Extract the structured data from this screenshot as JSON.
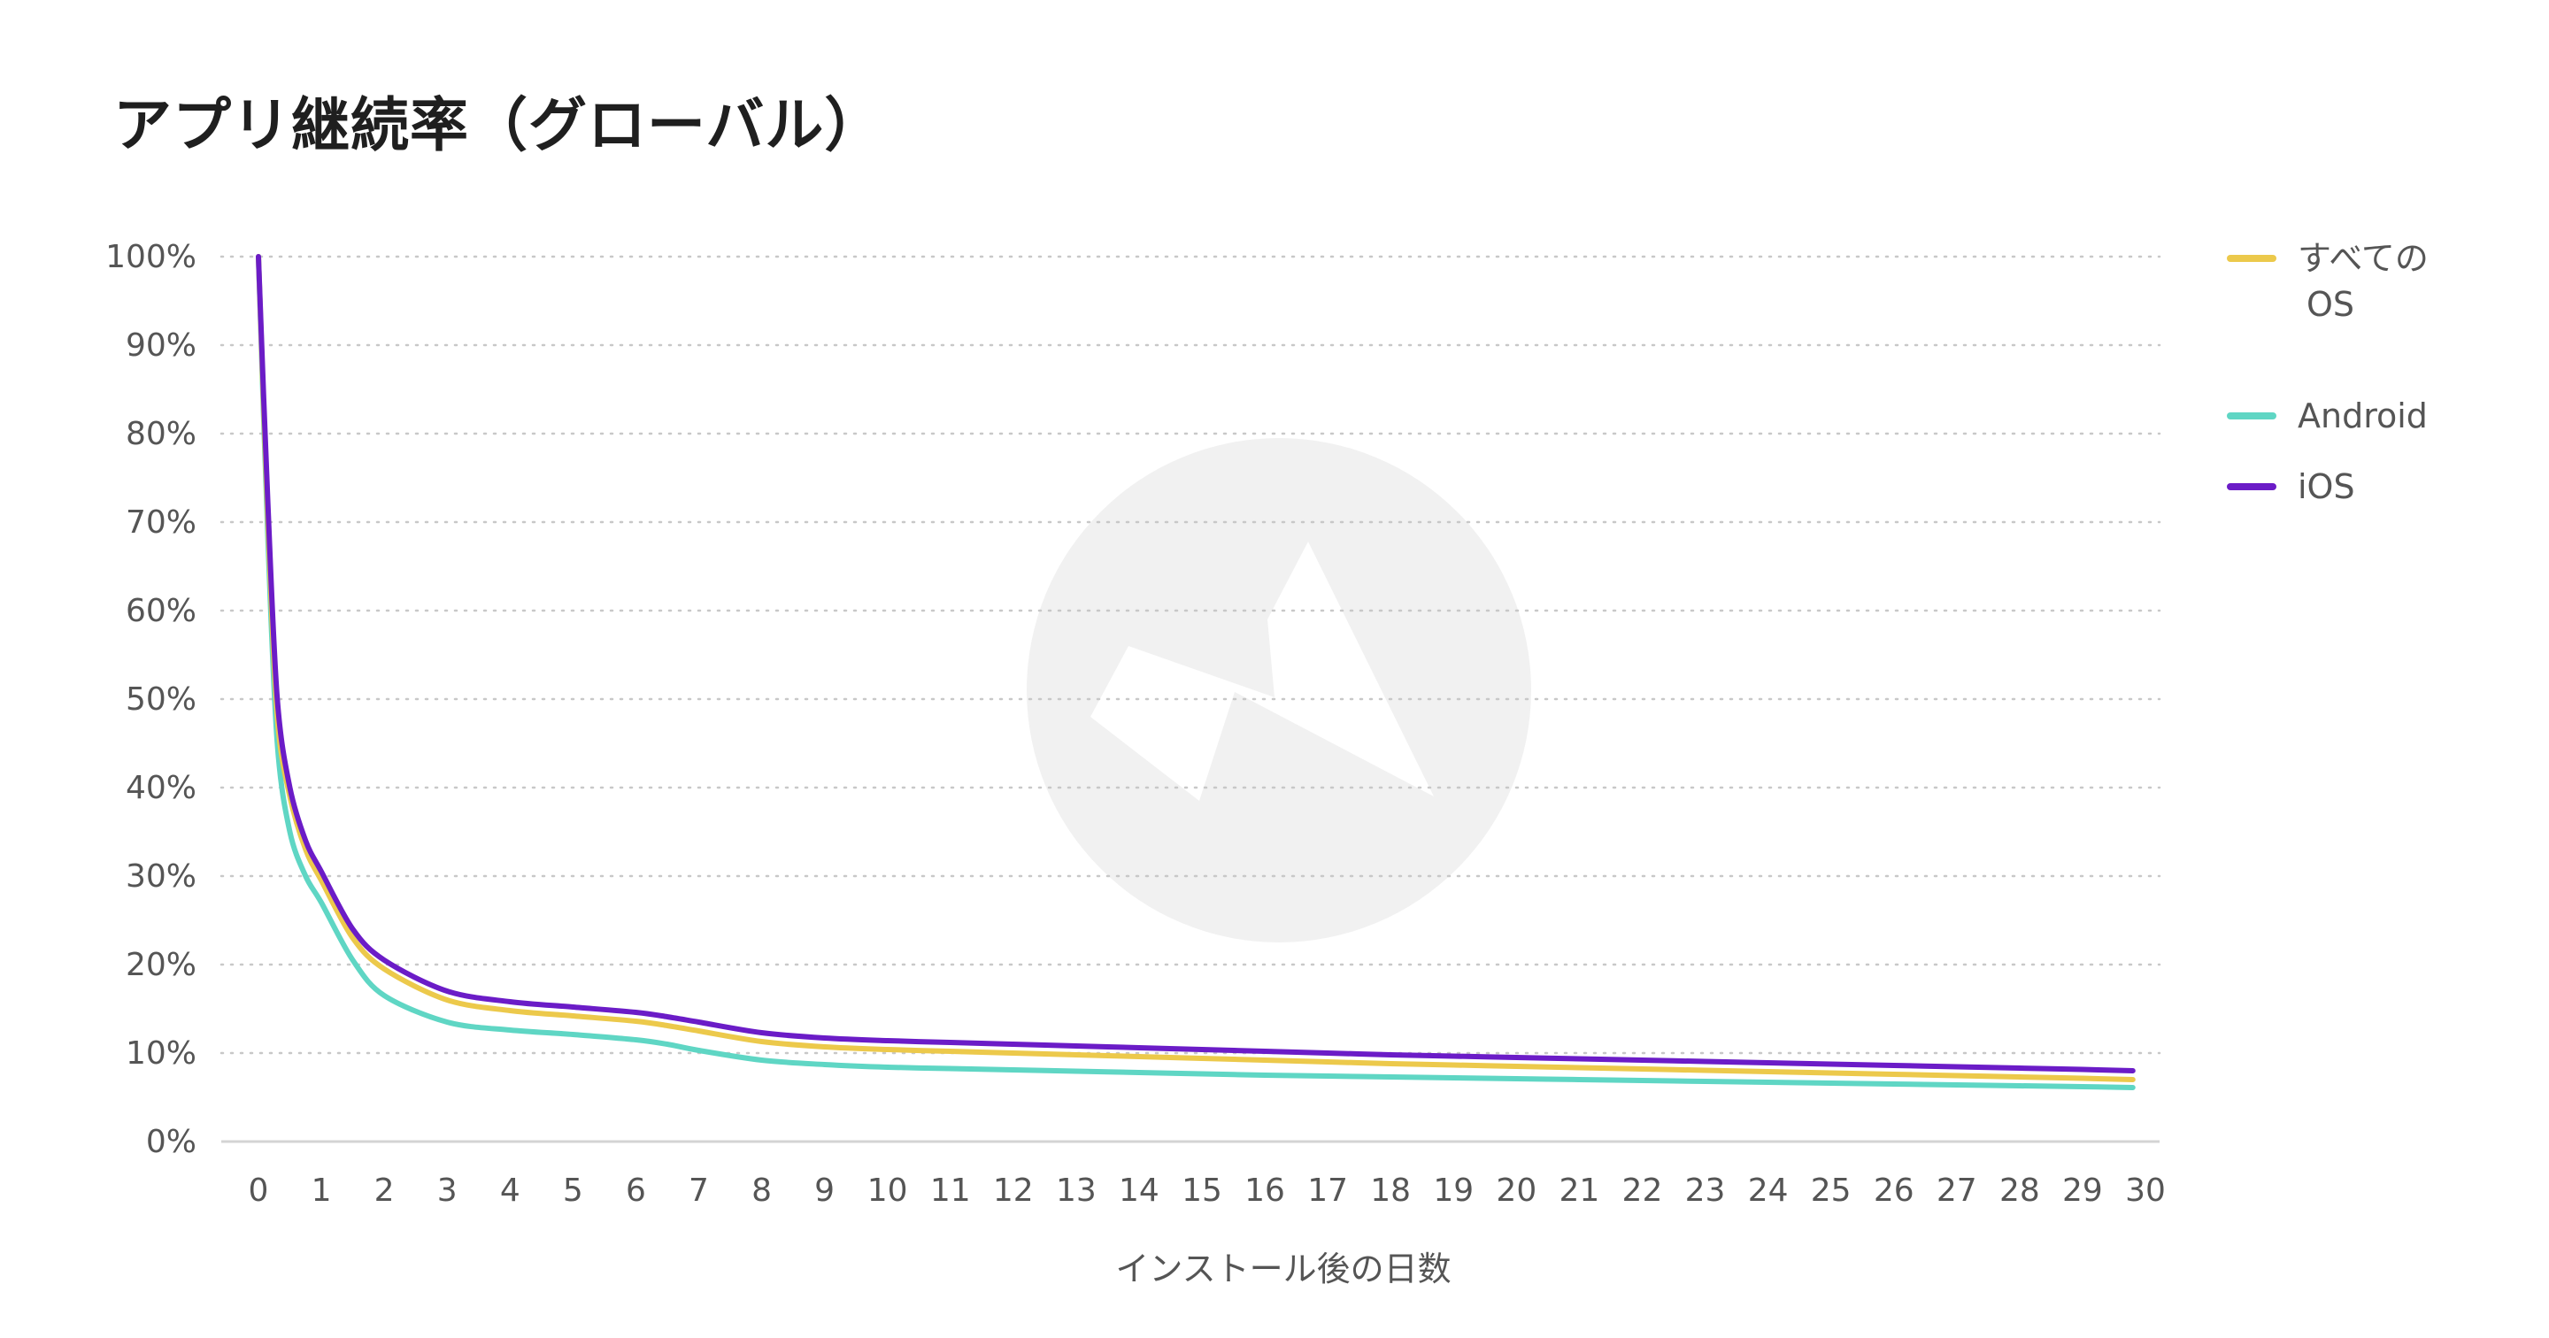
{
  "chart_data": {
    "type": "line",
    "title": "アプリ継続率（グローバル）",
    "xlabel": "インストール後の日数",
    "ylabel": "",
    "x": [
      0,
      0.15,
      0.3,
      0.5,
      0.75,
      1,
      1.5,
      2,
      3,
      4,
      5,
      6,
      6.5,
      7,
      8,
      9,
      10,
      11,
      12,
      13,
      14,
      15,
      16,
      17,
      18,
      19,
      20,
      21,
      22,
      23,
      24,
      25,
      26,
      27,
      28,
      29,
      29.8
    ],
    "xticks": [
      "0",
      "1",
      "2",
      "3",
      "4",
      "5",
      "6",
      "7",
      "8",
      "9",
      "10",
      "11",
      "12",
      "13",
      "14",
      "15",
      "16",
      "17",
      "18",
      "19",
      "20",
      "21",
      "22",
      "23",
      "24",
      "25",
      "26",
      "27",
      "28",
      "29",
      "30"
    ],
    "yticks": [
      "0%",
      "10%",
      "20%",
      "30%",
      "40%",
      "50%",
      "60%",
      "70%",
      "80%",
      "90%",
      "100%"
    ],
    "xlim": [
      0,
      30
    ],
    "ylim": [
      0,
      100
    ],
    "grid": true,
    "legend_position": "top-right",
    "series": [
      {
        "name": "すべての OS",
        "name_lines": [
          "すべての",
          "OS"
        ],
        "color": "#ecc94b",
        "values": [
          100,
          70,
          48,
          39,
          33,
          29.5,
          23,
          19.5,
          16,
          14.8,
          14.2,
          13.6,
          13.1,
          12.5,
          11.3,
          10.7,
          10.4,
          10.2,
          10.0,
          9.8,
          9.6,
          9.4,
          9.2,
          9.0,
          8.8,
          8.65,
          8.5,
          8.35,
          8.2,
          8.05,
          7.9,
          7.75,
          7.6,
          7.45,
          7.3,
          7.15,
          7.0
        ]
      },
      {
        "name": "Android",
        "name_lines": [
          "Android"
        ],
        "color": "#5fd6c4",
        "values": [
          100,
          68,
          45,
          35,
          30,
          27,
          20.5,
          16.5,
          13.5,
          12.6,
          12.1,
          11.5,
          11.0,
          10.3,
          9.2,
          8.7,
          8.4,
          8.25,
          8.1,
          7.95,
          7.8,
          7.65,
          7.5,
          7.4,
          7.3,
          7.2,
          7.1,
          7.0,
          6.9,
          6.8,
          6.7,
          6.6,
          6.5,
          6.4,
          6.3,
          6.2,
          6.1
        ]
      },
      {
        "name": "iOS",
        "name_lines": [
          "iOS"
        ],
        "color": "#6b1cc7",
        "values": [
          100,
          72,
          50,
          40,
          34,
          30.5,
          24,
          20.5,
          17,
          15.8,
          15.2,
          14.6,
          14.1,
          13.5,
          12.3,
          11.7,
          11.4,
          11.2,
          11.0,
          10.8,
          10.6,
          10.4,
          10.2,
          10.0,
          9.8,
          9.65,
          9.5,
          9.35,
          9.2,
          9.05,
          8.9,
          8.75,
          8.6,
          8.45,
          8.3,
          8.15,
          8.0
        ]
      }
    ]
  }
}
